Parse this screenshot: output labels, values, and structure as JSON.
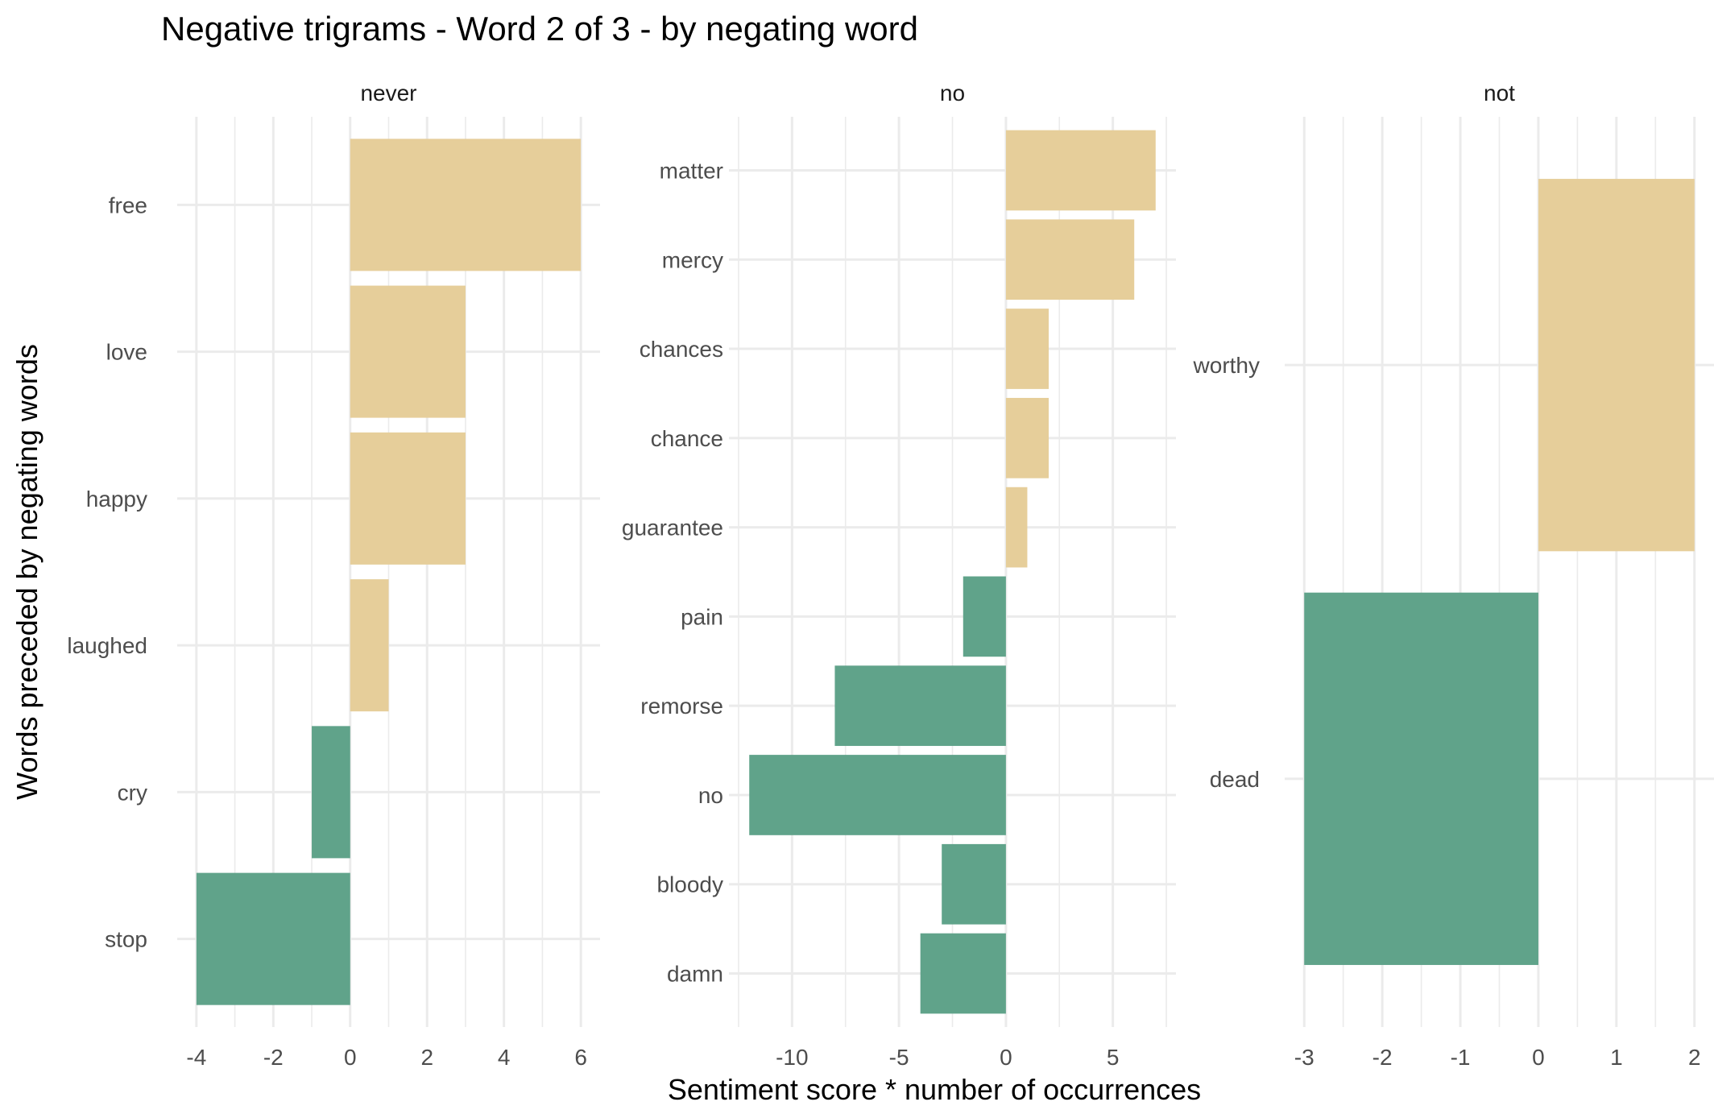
{
  "colors": {
    "positive": "#E6CE9A",
    "negative": "#60A38A",
    "grid": "#EBEBEB"
  },
  "chart_data": {
    "type": "bar",
    "orientation": "horizontal",
    "facets": "free-scales",
    "title": "Negative trigrams - Word 2 of 3 - by negating word",
    "xlabel": "Sentiment score * number of occurrences",
    "ylabel": "Words preceded by negating words",
    "grid": true,
    "legend": "none",
    "panels": [
      {
        "label": "never",
        "xlim": [
          -4,
          6
        ],
        "xticks": [
          -4,
          -2,
          0,
          2,
          4,
          6
        ],
        "categories": [
          "free",
          "love",
          "happy",
          "laughed",
          "cry",
          "stop"
        ],
        "values": [
          6,
          3,
          3,
          1,
          -1,
          -4
        ]
      },
      {
        "label": "no",
        "xlim": [
          -12,
          7
        ],
        "xticks": [
          -10,
          -5,
          0,
          5
        ],
        "categories": [
          "matter",
          "mercy",
          "chances",
          "chance",
          "guarantee",
          "pain",
          "remorse",
          "no",
          "bloody",
          "damn"
        ],
        "values": [
          7,
          6,
          2,
          2,
          1,
          -2,
          -8,
          -12,
          -3,
          -4
        ]
      },
      {
        "label": "not",
        "xlim": [
          -3,
          2
        ],
        "xticks": [
          -3,
          -2,
          -1,
          0,
          1,
          2
        ],
        "categories": [
          "worthy",
          "dead"
        ],
        "values": [
          2,
          -3
        ]
      }
    ]
  }
}
